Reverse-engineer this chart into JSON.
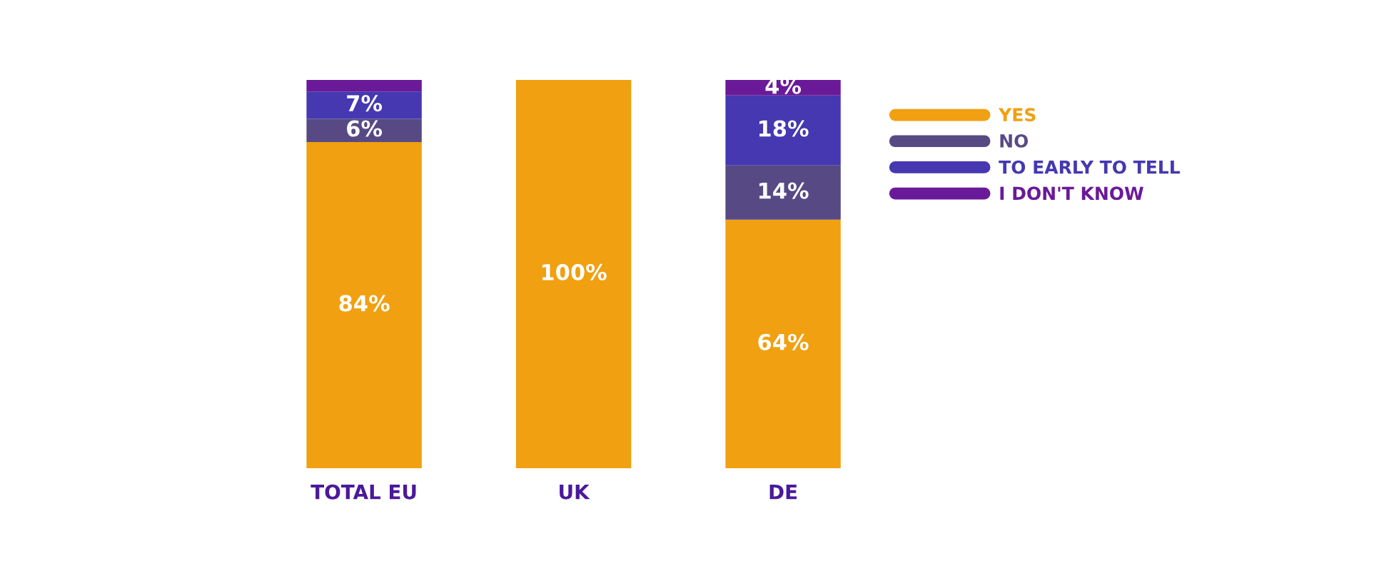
{
  "chart_data": {
    "type": "bar",
    "stacked": true,
    "categories": [
      "TOTAL EU",
      "UK",
      "DE"
    ],
    "series": [
      {
        "name": "YES",
        "color": "#f0a010",
        "values": [
          84,
          100,
          64
        ],
        "value_labels": [
          "84%",
          "100%",
          "64%"
        ]
      },
      {
        "name": "NO",
        "color": "#574a84",
        "values": [
          6,
          0,
          14
        ],
        "value_labels": [
          "6%",
          null,
          "14%"
        ]
      },
      {
        "name": "TO EARLY TO TELL",
        "color": "#4538b0",
        "values": [
          7,
          0,
          18
        ],
        "value_labels": [
          "7%",
          null,
          "18%"
        ]
      },
      {
        "name": "I DON'T KNOW",
        "color": "#6a1a98",
        "values": [
          3,
          0,
          4
        ],
        "value_labels": [
          null,
          null,
          "4%"
        ]
      }
    ],
    "legend": "right",
    "grid": false
  }
}
